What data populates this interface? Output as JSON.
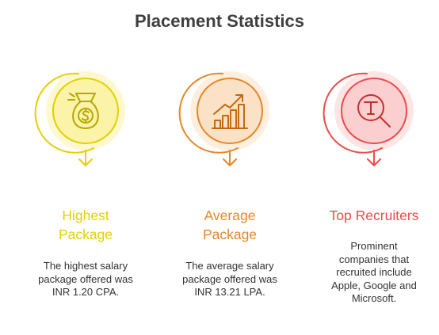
{
  "title": "Placement Statistics",
  "items": [
    {
      "heading_lines": [
        "Highest",
        "Package"
      ],
      "description_lines": [
        "The highest salary",
        "package offered was",
        "INR 1.20 CPA."
      ],
      "icon": "money-bag-icon",
      "color": "#e3d000"
    },
    {
      "heading_lines": [
        "Average",
        "Package"
      ],
      "description_lines": [
        "The average salary",
        "package offered was",
        "INR 13.21 LPA."
      ],
      "icon": "growth-chart-icon",
      "color": "#e5872a"
    },
    {
      "heading_lines": [
        "Top Recruiters"
      ],
      "description_lines": [
        "Prominent",
        "companies that",
        "recruited include",
        "Apple, Google and",
        "Microsoft."
      ],
      "icon": "recruiter-search-icon",
      "color": "#ea4b4b"
    }
  ]
}
